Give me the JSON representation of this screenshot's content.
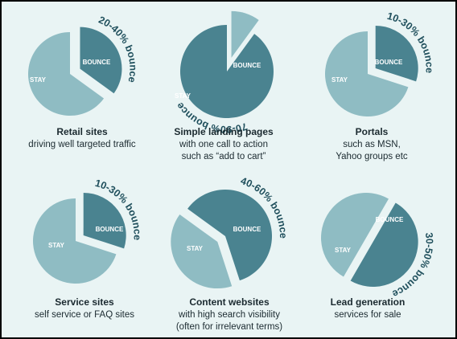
{
  "colors": {
    "background": "#e9f4f4",
    "stay": "#8fbcc3",
    "bounce": "#4a8390",
    "range_text": "#1f4f5c",
    "caption_text": "#1b2a30"
  },
  "chart_data": [
    {
      "type": "pie",
      "bounce_label": "BOUNCE",
      "stay_label": "STAY",
      "bounce_range": "20-40% bounce",
      "values": {
        "bounce": 35,
        "stay": 65
      },
      "caption_title": "Retail sites",
      "caption_lines": [
        "driving well targeted traffic"
      ]
    },
    {
      "type": "pie",
      "bounce_label": "BOUNCE",
      "stay_label": "STAY",
      "bounce_range": "70-90% bounce",
      "values": {
        "bounce": 90,
        "stay": 10
      },
      "caption_title": "Simple landing pages",
      "caption_lines": [
        "with one call to action",
        "such as “add to cart”"
      ]
    },
    {
      "type": "pie",
      "bounce_label": "BOUNCE",
      "stay_label": "STAY",
      "bounce_range": "10-30% bounce",
      "values": {
        "bounce": 30,
        "stay": 70
      },
      "caption_title": "Portals",
      "caption_lines": [
        "such as MSN,",
        "Yahoo groups etc"
      ]
    },
    {
      "type": "pie",
      "bounce_label": "BOUNCE",
      "stay_label": "STAY",
      "bounce_range": "10-30% bounce",
      "values": {
        "bounce": 30,
        "stay": 70
      },
      "caption_title": "Service sites",
      "caption_lines": [
        "self service or FAQ sites"
      ]
    },
    {
      "type": "pie",
      "bounce_label": "BOUNCE",
      "stay_label": "STAY",
      "bounce_range": "40-60% bounce",
      "values": {
        "bounce": 60,
        "stay": 40
      },
      "caption_title": "Content websites",
      "caption_lines": [
        "with high search visibility",
        "(often for irrelevant terms)"
      ]
    },
    {
      "type": "pie",
      "bounce_label": "BOUNCE",
      "stay_label": "STAY",
      "bounce_range": "30-50% bounce",
      "values": {
        "bounce": 50,
        "stay": 50
      },
      "caption_title": "Lead generation",
      "caption_lines": [
        "services for sale"
      ]
    }
  ]
}
